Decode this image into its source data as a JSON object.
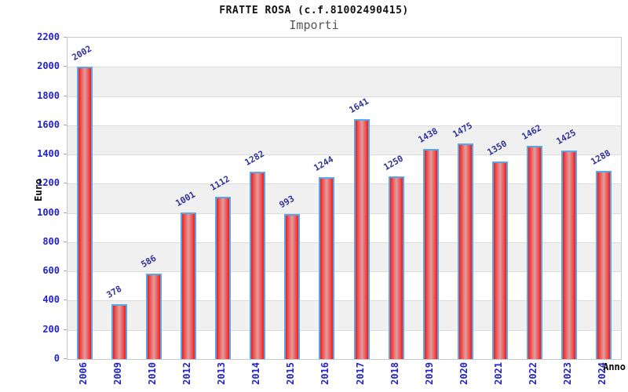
{
  "chart_data": {
    "type": "bar",
    "title": "FRATTE ROSA (c.f.81002490415)",
    "subtitle": "Importi",
    "xlabel": "Anno",
    "ylabel": "Euro",
    "categories": [
      "2006",
      "2009",
      "2010",
      "2012",
      "2013",
      "2014",
      "2015",
      "2016",
      "2017",
      "2018",
      "2019",
      "2020",
      "2021",
      "2022",
      "2023",
      "2024"
    ],
    "values": [
      2002,
      378,
      586,
      1001,
      1112,
      1282,
      993,
      1244,
      1641,
      1250,
      1438,
      1475,
      1350,
      1462,
      1425,
      1288
    ],
    "ylim": [
      0,
      2200
    ],
    "ytick_step": 200,
    "yticks": [
      0,
      200,
      400,
      600,
      800,
      1000,
      1200,
      1400,
      1600,
      1800,
      2000,
      2200
    ],
    "grid": "alternating-horizontal-bands",
    "legend": "none",
    "colors": {
      "bar_edge": "#e81e1e",
      "bar_mid": "#f25555",
      "bar_center": "#dda0a0",
      "bar_border": "#5aa7e8",
      "tick_label": "#2222cc",
      "value_label": "#32329b",
      "band_gray": "#f0f0f0",
      "band_white": "#ffffff",
      "gridline": "#dcdcdc",
      "plot_border": "#c8c8c8",
      "title_color": "#111111",
      "subtitle_color": "#555555",
      "axis_title_color": "#222222"
    }
  }
}
